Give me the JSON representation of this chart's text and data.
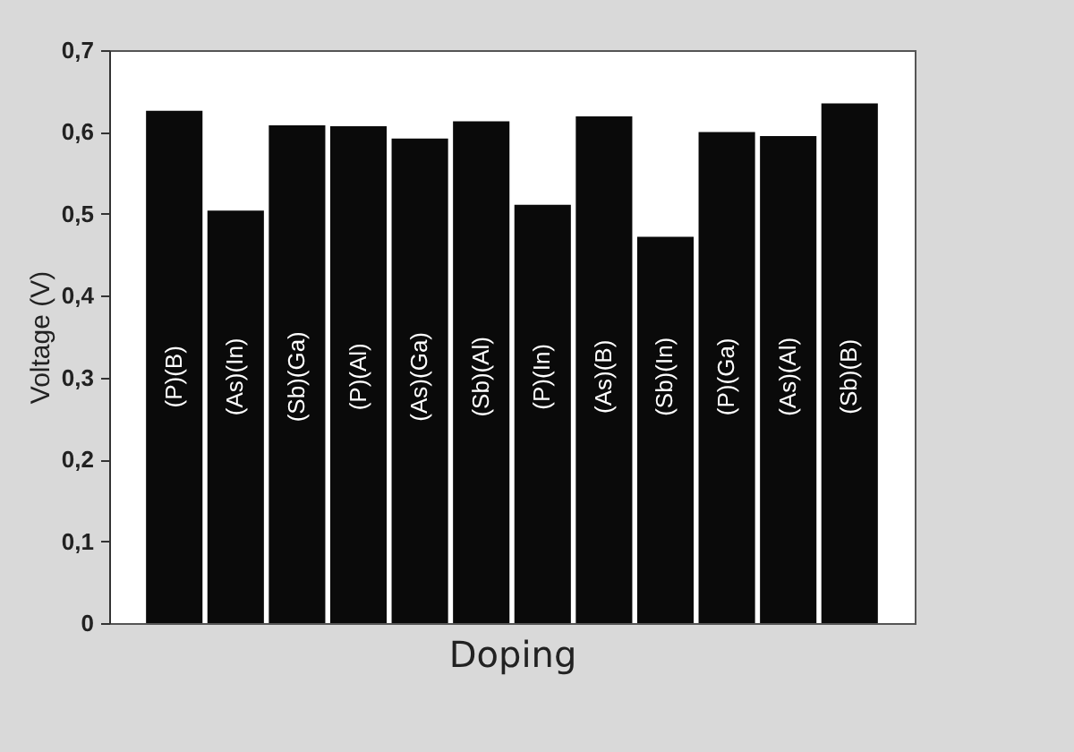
{
  "chart_data": {
    "type": "bar",
    "xlabel": "Doping",
    "ylabel": "Voltage (V)",
    "categories": [
      "(P)(B)",
      "(As)(In)",
      "(Sb)(Ga)",
      "(P)(Al)",
      "(As)(Ga)",
      "(Sb)(Al)",
      "(P)(In)",
      "(As)(B)",
      "(Sb)(In)",
      "(P)(Ga)",
      "(As)(Al)",
      "(Sb)(B)"
    ],
    "values": [
      0.626,
      0.504,
      0.608,
      0.607,
      0.592,
      0.613,
      0.511,
      0.619,
      0.472,
      0.6,
      0.595,
      0.635
    ],
    "color": "#0a0a0a",
    "ylim": [
      0,
      0.7
    ],
    "yticks": [
      0,
      {
        "value": 0.1,
        "label": "0,1"
      },
      {
        "value": 0.2,
        "label": "0,2"
      },
      {
        "value": 0.3,
        "label": "0,3"
      },
      {
        "value": 0.4,
        "label": "0,4"
      },
      {
        "value": 0.5,
        "label": "0,5"
      },
      {
        "value": 0.6,
        "label": "0,6"
      },
      {
        "value": 0.7,
        "label": "0,7"
      }
    ],
    "tick_labels": "y",
    "grid": false
  }
}
